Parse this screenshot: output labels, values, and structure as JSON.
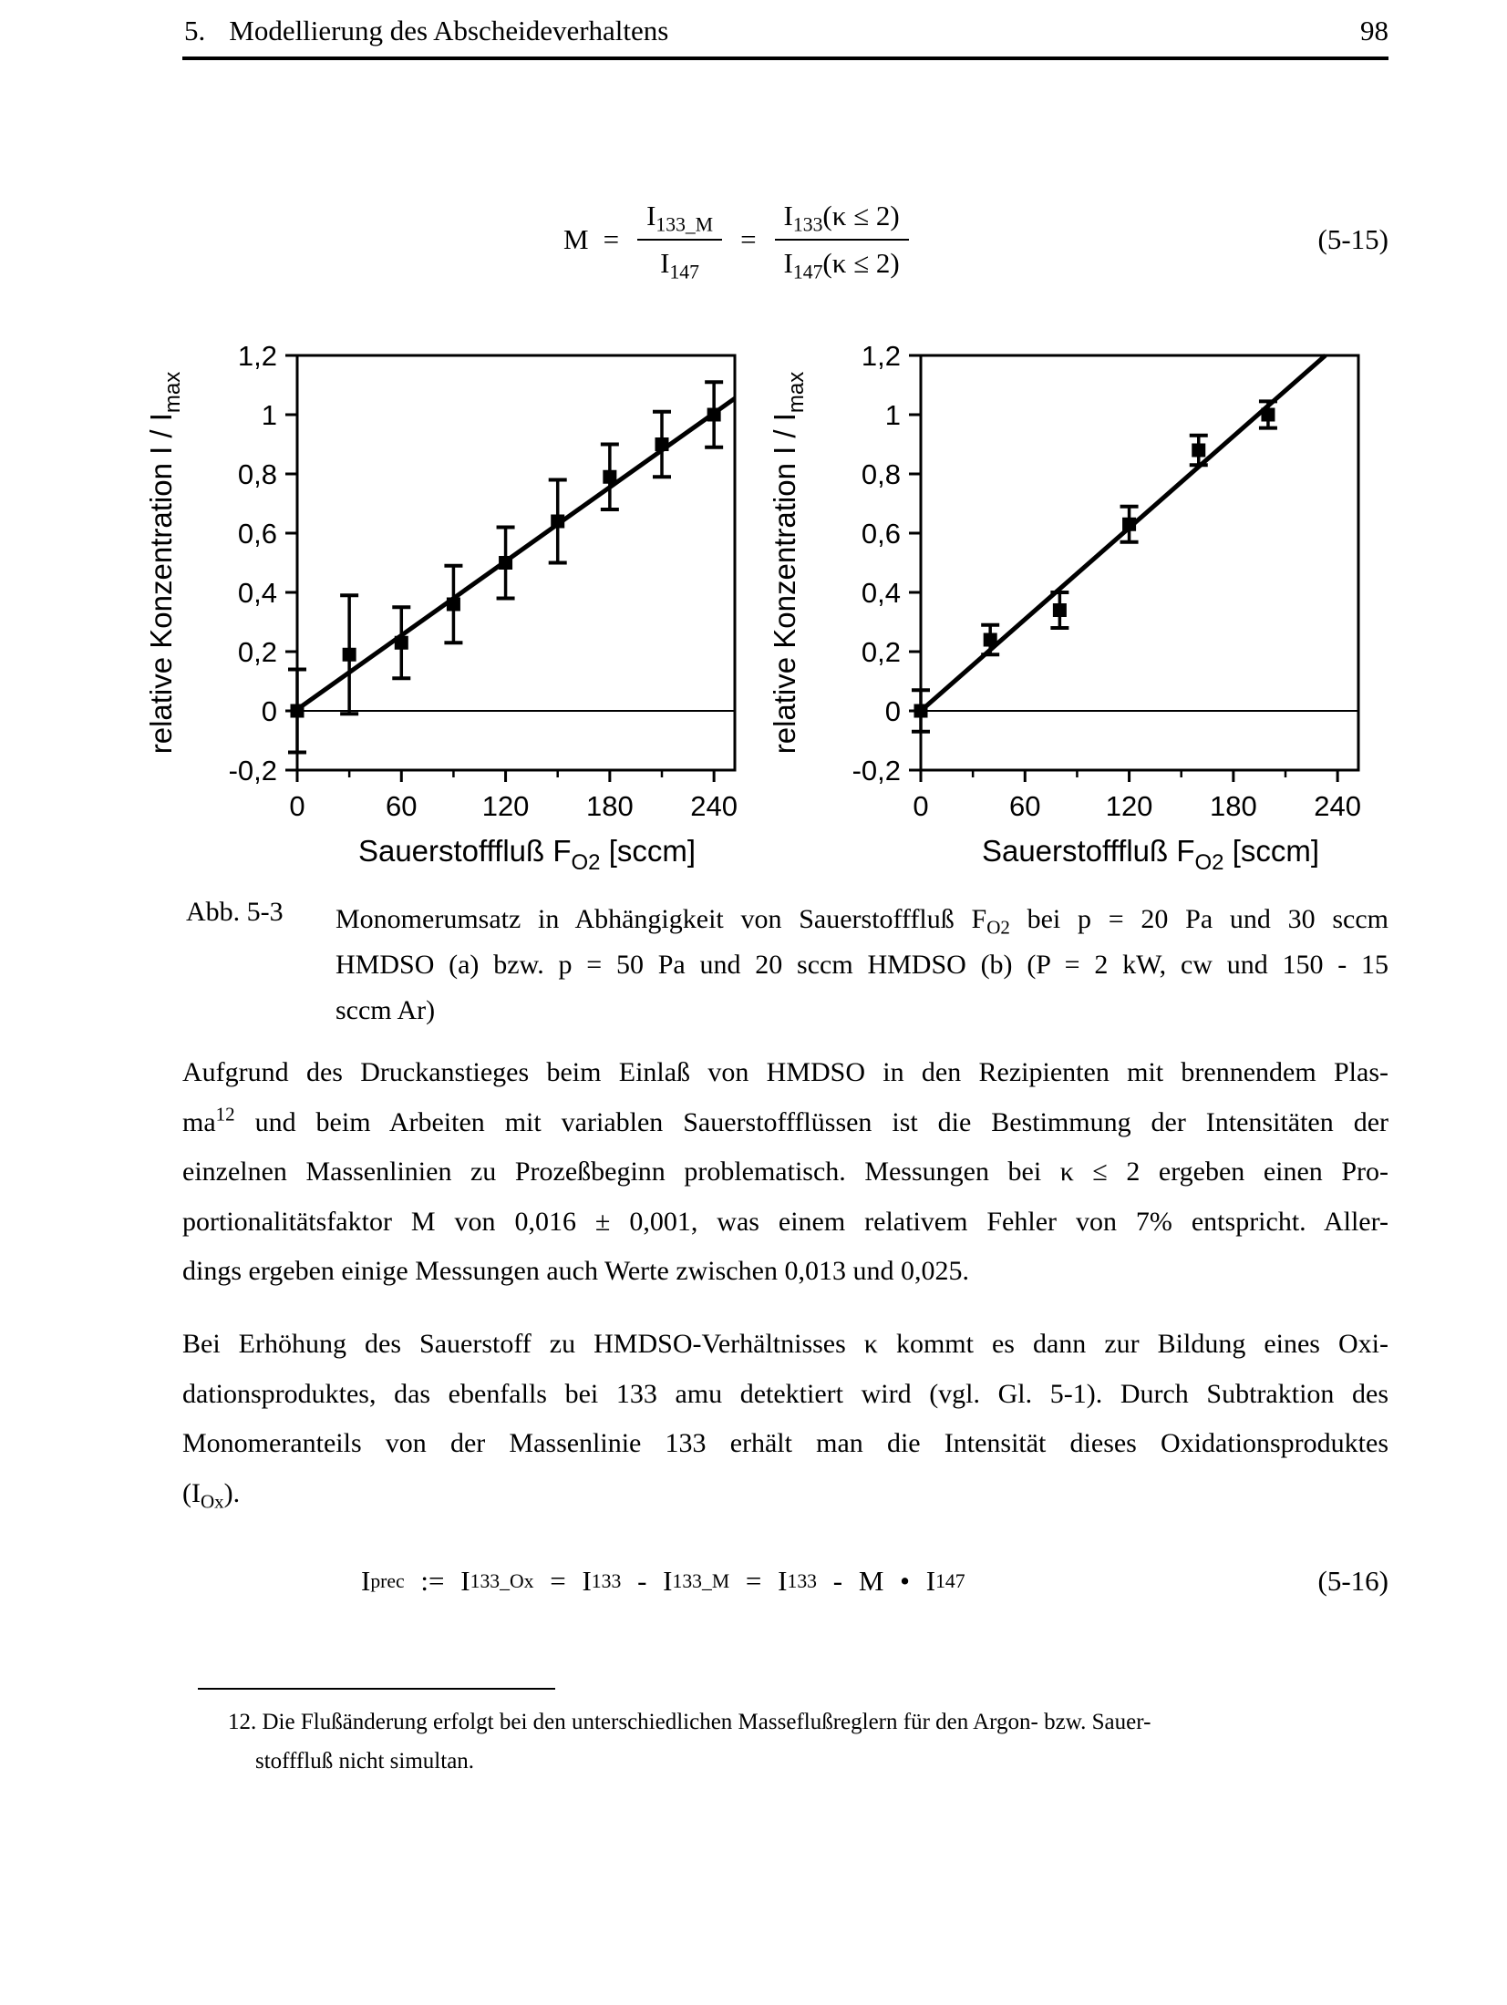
{
  "colors": {
    "ink": "#000000",
    "paper": "#ffffff"
  },
  "header": {
    "chapter": "5.",
    "title": "Modellierung des Abscheideverhaltens",
    "page_number": "98"
  },
  "equations": {
    "eq515": {
      "lhs": "M",
      "rel1": "=",
      "rel2": "=",
      "frac1": {
        "num_base": "I",
        "num_sub": "133_M",
        "den_base": "I",
        "den_sub": "147"
      },
      "frac2": {
        "num_base": "I",
        "num_sub": "133",
        "num_rest": "(κ ≤ 2)",
        "den_base": "I",
        "den_sub": "147",
        "den_rest": "(κ ≤ 2)"
      },
      "number": "(5-15)"
    },
    "eq516": {
      "segments": [
        {
          "t": "I"
        },
        {
          "t": "prec",
          "v": "sub"
        },
        {
          "t": " := "
        },
        {
          "t": "I"
        },
        {
          "t": "133_Ox",
          "v": "sub"
        },
        {
          "t": " = "
        },
        {
          "t": "I"
        },
        {
          "t": "133",
          "v": "sub"
        },
        {
          "t": " - "
        },
        {
          "t": "I"
        },
        {
          "t": "133_M",
          "v": "sub"
        },
        {
          "t": " = "
        },
        {
          "t": "I"
        },
        {
          "t": "133",
          "v": "sub"
        },
        {
          "t": " - M • I"
        },
        {
          "t": "147",
          "v": "sub"
        }
      ],
      "number": "(5-16)"
    }
  },
  "chart_data": [
    {
      "type": "scatter",
      "panel": "a",
      "xlabel": "Sauerstofffluß F_O2 [sccm]",
      "xlabel_parts": {
        "pre": "Sauerstofffluß F",
        "sub": "O2",
        "post": " [sccm]"
      },
      "ylabel": "relative Konzentration I / I_max",
      "ylabel_parts": {
        "pre": "relative Konzentration I / I",
        "sub": "max"
      },
      "xlim": [
        0,
        252
      ],
      "ylim": [
        -0.2,
        1.2
      ],
      "x_major_ticks": [
        0,
        60,
        120,
        180,
        240
      ],
      "x_tick_labels": [
        "0",
        "60",
        "120",
        "180",
        "240"
      ],
      "x_minor_ticks": [
        30,
        90,
        150,
        210
      ],
      "y_ticks": [
        -0.2,
        0,
        0.2,
        0.4,
        0.6,
        0.8,
        1,
        1.2
      ],
      "y_tick_labels": [
        "-0,2",
        "0",
        "0,2",
        "0,4",
        "0,6",
        "0,8",
        "1",
        "1,2"
      ],
      "grid": false,
      "legend": null,
      "marker": "square",
      "error_bars": true,
      "zero_line": true,
      "points": [
        {
          "x": 0,
          "y": 0.0,
          "err": 0.14
        },
        {
          "x": 30,
          "y": 0.19,
          "err": 0.2
        },
        {
          "x": 60,
          "y": 0.23,
          "err": 0.12
        },
        {
          "x": 90,
          "y": 0.36,
          "err": 0.13
        },
        {
          "x": 120,
          "y": 0.5,
          "err": 0.12
        },
        {
          "x": 150,
          "y": 0.64,
          "err": 0.14
        },
        {
          "x": 180,
          "y": 0.79,
          "err": 0.11
        },
        {
          "x": 210,
          "y": 0.9,
          "err": 0.11
        },
        {
          "x": 240,
          "y": 1.0,
          "err": 0.11
        }
      ],
      "fit_line": {
        "x": [
          0,
          252
        ],
        "y": [
          0.005,
          1.055
        ]
      }
    },
    {
      "type": "scatter",
      "panel": "b",
      "xlabel": "Sauerstofffluß F_O2 [sccm]",
      "xlabel_parts": {
        "pre": "Sauerstofffluß F",
        "sub": "O2",
        "post": " [sccm]"
      },
      "ylabel": "relative Konzentration I / I_max",
      "ylabel_parts": {
        "pre": "relative Konzentration I / I",
        "sub": "max"
      },
      "xlim": [
        0,
        252
      ],
      "ylim": [
        -0.2,
        1.2
      ],
      "x_major_ticks": [
        0,
        60,
        120,
        180,
        240
      ],
      "x_tick_labels": [
        "0",
        "60",
        "120",
        "180",
        "240"
      ],
      "x_minor_ticks": [
        30,
        90,
        150,
        210
      ],
      "y_ticks": [
        -0.2,
        0,
        0.2,
        0.4,
        0.6,
        0.8,
        1,
        1.2
      ],
      "y_tick_labels": [
        "-0,2",
        "0",
        "0,2",
        "0,4",
        "0,6",
        "0,8",
        "1",
        "1,2"
      ],
      "grid": false,
      "legend": null,
      "marker": "square",
      "error_bars": true,
      "zero_line": true,
      "points": [
        {
          "x": 0,
          "y": 0.0,
          "err": 0.07
        },
        {
          "x": 40,
          "y": 0.24,
          "err": 0.05
        },
        {
          "x": 80,
          "y": 0.34,
          "err": 0.06
        },
        {
          "x": 120,
          "y": 0.63,
          "err": 0.06
        },
        {
          "x": 160,
          "y": 0.88,
          "err": 0.05
        },
        {
          "x": 200,
          "y": 1.0,
          "err": 0.045
        }
      ],
      "fit_line": {
        "x": [
          0,
          233
        ],
        "y": [
          0.0,
          1.2
        ]
      }
    }
  ],
  "figure": {
    "caption_label": "Abb. 5-3",
    "caption_lines": [
      [
        {
          "t": "Monomerumsatz in Abhängigkeit von Sauerstofffluß F"
        },
        {
          "t": "O2",
          "v": "sub"
        },
        {
          "t": " bei p = 20 Pa und 30 sccm"
        }
      ],
      [
        {
          "t": "HMDSO (a) bzw. p = 50 Pa und 20 sccm HMDSO (b) (P = 2 kW, cw und 150 - 15"
        }
      ],
      [
        {
          "t": "sccm Ar)"
        }
      ]
    ]
  },
  "paragraphs": [
    {
      "lines": [
        [
          {
            "t": "Aufgrund des Druckanstieges beim Einlaß von HMDSO in den Rezipienten mit brennendem Plas-"
          }
        ],
        [
          {
            "t": "ma"
          },
          {
            "t": "12",
            "v": "sup"
          },
          {
            "t": " und beim Arbeiten mit variablen Sauerstoffflüssen ist die Bestimmung der Intensitäten der"
          }
        ],
        [
          {
            "t": "einzelnen Massenlinien zu Prozeßbeginn problematisch. Messungen bei κ ≤ 2 ergeben einen Pro-"
          }
        ],
        [
          {
            "t": "portionalitätsfaktor M von 0,016 ± 0,001, was einem relativem Fehler von 7% entspricht. Aller-"
          }
        ],
        [
          {
            "t": "dings ergeben einige Messungen auch Werte zwischen 0,013 und 0,025."
          }
        ]
      ]
    },
    {
      "lines": [
        [
          {
            "t": "Bei Erhöhung des Sauerstoff zu HMDSO-Verhältnisses κ kommt es dann zur Bildung eines Oxi-"
          }
        ],
        [
          {
            "t": "dationsproduktes, das ebenfalls bei 133 amu detektiert wird (vgl. Gl. 5-1). Durch Subtraktion des"
          }
        ],
        [
          {
            "t": "Monomeranteils von der Massenlinie 133 erhält man die Intensität dieses Oxidationsproduktes"
          }
        ],
        [
          {
            "t": "(I"
          },
          {
            "t": "Ox",
            "v": "sub"
          },
          {
            "t": ")."
          }
        ]
      ]
    }
  ],
  "footnote": {
    "lines": [
      [
        {
          "t": "12. Die Flußänderung erfolgt bei den unterschiedlichen Masseflußreglern für den Argon- bzw. Sauer-"
        }
      ],
      [
        {
          "t": "stofffluß nicht simultan."
        }
      ]
    ]
  }
}
